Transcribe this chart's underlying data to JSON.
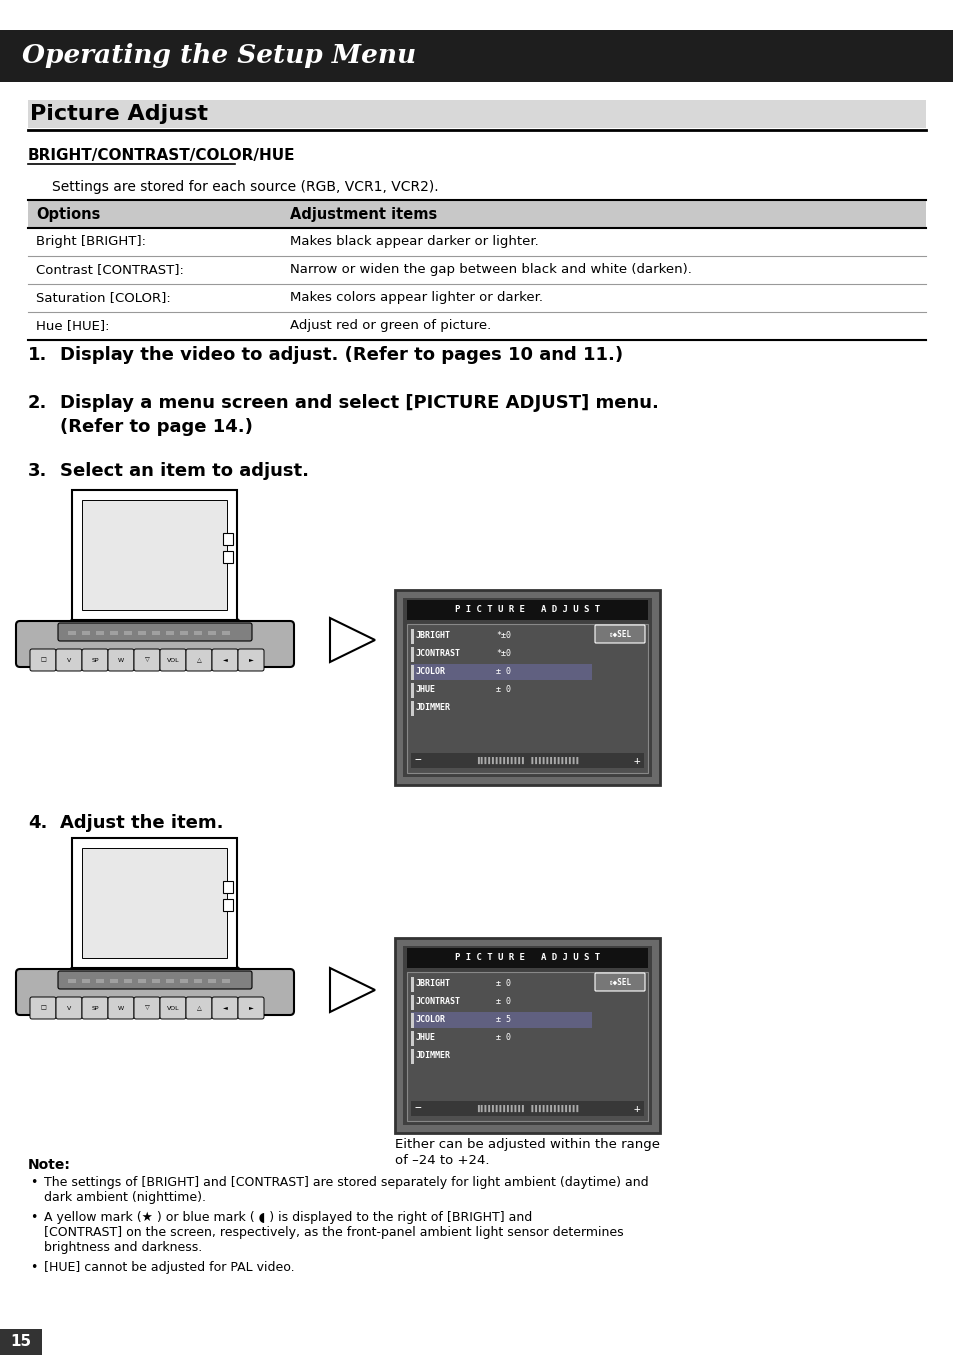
{
  "bg_color": "#ffffff",
  "header_bar_color": "#1e1e1e",
  "header_text": "Operating the Setup Menu",
  "header_text_color": "#ffffff",
  "section_title": "Picture Adjust",
  "subsection_title": "BRIGHT/CONTRAST/COLOR/HUE",
  "settings_note": "Settings are stored for each source (RGB, VCR1, VCR2).",
  "table_header_bg": "#c8c8c8",
  "table_header_col1": "Options",
  "table_header_col2": "Adjustment items",
  "table_rows": [
    [
      "Bright [BRIGHT]:",
      "Makes black appear darker or lighter."
    ],
    [
      "Contrast [CONTRAST]:",
      "Narrow or widen the gap between black and white (darken)."
    ],
    [
      "Saturation [COLOR]:",
      "Makes colors appear lighter or darker."
    ],
    [
      "Hue [HUE]:",
      "Adjust red or green of picture."
    ]
  ],
  "step1": "Display the video to adjust. (Refer to pages 10 and 11.)",
  "step2a": "Display a menu screen and select [PICTURE ADJUST] menu.",
  "step2b": "(Refer to page 14.)",
  "step3": "Select an item to adjust.",
  "step4": "Adjust the item.",
  "range_note_line1": "Either can be adjusted within the range",
  "range_note_line2": "of –24 to +24.",
  "note_title": "Note:",
  "note_bullet1_line1": "The settings of [BRIGHT] and [CONTRAST] are stored separately for light ambient (daytime) and",
  "note_bullet1_line2": "dark ambient (nighttime).",
  "note_bullet2_line1": "A yellow mark (★ ) or blue mark ( ◖ ) is displayed to the right of [BRIGHT] and",
  "note_bullet2_line2": "[CONTRAST] on the screen, respectively, as the front-panel ambient light sensor determines",
  "note_bullet2_line3": "brightness and darkness.",
  "note_bullet3": "[HUE] cannot be adjusted for PAL video.",
  "page_number": "15"
}
